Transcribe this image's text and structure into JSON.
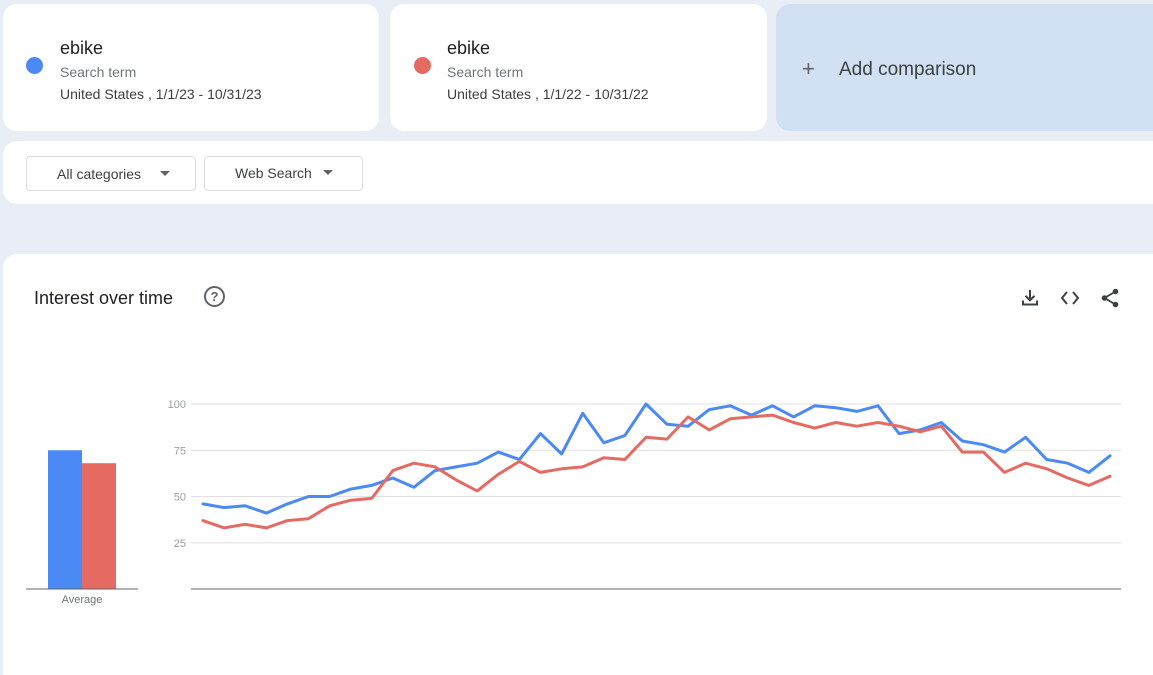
{
  "terms": [
    {
      "name": "ebike",
      "type": "Search term",
      "range": "United States , 1/1/23 - 10/31/23",
      "color": "#4b8af5"
    },
    {
      "name": "ebike",
      "type": "Search term",
      "range": "United States , 1/1/22 - 10/31/22",
      "color": "#e46a62"
    }
  ],
  "add_comparison": {
    "plus": "+",
    "label": "Add comparison"
  },
  "filters": {
    "categories": "All categories",
    "search_type": "Web Search"
  },
  "panel": {
    "title": "Interest over time",
    "help": "?",
    "icons": [
      "download-icon",
      "embed-icon",
      "share-icon"
    ]
  },
  "chart_data": {
    "type": "line",
    "yticks": [
      25,
      50,
      75,
      100
    ],
    "ylim": [
      0,
      100
    ],
    "grid": true,
    "average_label": "Average",
    "averages": [
      75,
      68
    ],
    "series": [
      {
        "values": [
          46,
          44,
          45,
          41,
          46,
          50,
          50,
          54,
          56,
          60,
          55,
          64,
          66,
          68,
          74,
          70,
          84,
          73,
          95,
          79,
          83,
          100,
          89,
          88,
          97,
          99,
          94,
          99,
          93,
          99,
          98,
          96,
          99,
          84,
          86,
          90,
          80,
          78,
          74,
          82,
          70,
          68,
          63,
          72
        ]
      },
      {
        "values": [
          37,
          33,
          35,
          33,
          37,
          38,
          45,
          48,
          49,
          64,
          68,
          66,
          59,
          53,
          62,
          69,
          63,
          65,
          66,
          71,
          70,
          82,
          81,
          93,
          86,
          92,
          93,
          94,
          90,
          87,
          90,
          88,
          90,
          88,
          85,
          88,
          74,
          74,
          63,
          68,
          65,
          60,
          56,
          61
        ]
      }
    ]
  }
}
